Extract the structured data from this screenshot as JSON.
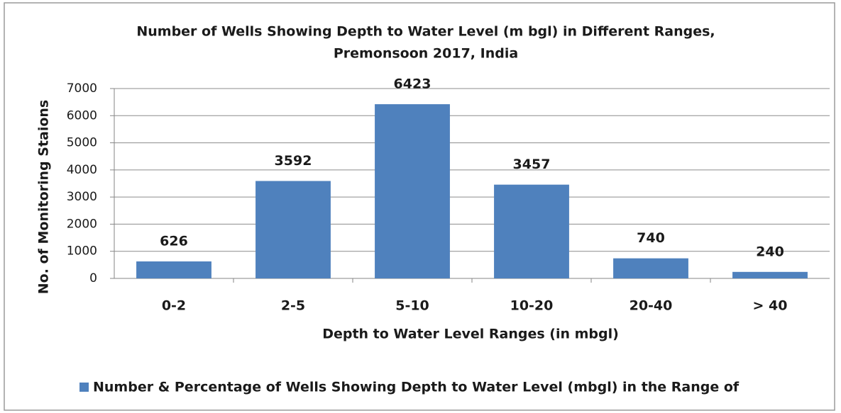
{
  "chart_data": {
    "type": "bar",
    "title": [
      "Number of Wells Showing Depth to Water Level (m bgl) in Different Ranges,",
      "Premonsoon  2017, India"
    ],
    "x_label": "Depth to Water Level Ranges (in mbgl)",
    "y_label": "No. of Monitoring Staions",
    "categories": [
      "0-2",
      "2-5",
      "5-10",
      "10-20",
      "20-40",
      "> 40"
    ],
    "series": [
      {
        "name": "Number & Percentage of Wells Showing Depth to Water Level (mbgl) in the Range of",
        "color": "#4f81bd",
        "values": [
          626,
          3592,
          6423,
          3457,
          740,
          240
        ]
      }
    ],
    "ylim": [
      0,
      7000
    ],
    "yticks": [
      0,
      1000,
      2000,
      3000,
      4000,
      5000,
      6000,
      7000
    ],
    "grid": true,
    "legend": "bottom"
  }
}
